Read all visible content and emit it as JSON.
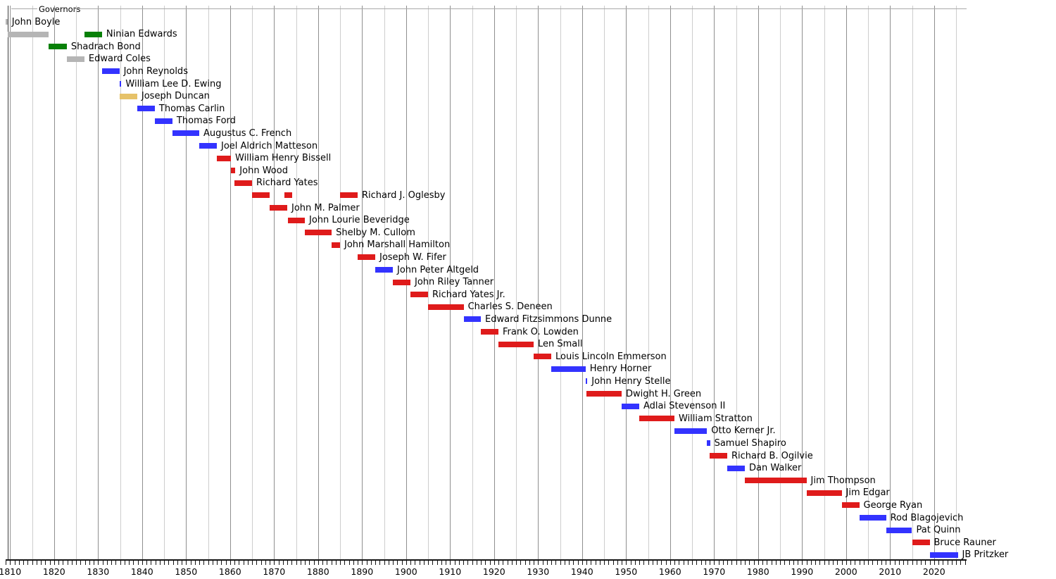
{
  "chart_data": {
    "type": "bar",
    "subtype": "timeline-gantt",
    "legend_title": "Governors",
    "x_axis": {
      "min_year": 1809,
      "max_year": 2027.4,
      "minor_tick_interval_years": 1,
      "gridline_interval_years": 5,
      "decade_labels": [
        "1810",
        "1820",
        "1830",
        "1840",
        "1850",
        "1860",
        "1870",
        "1880",
        "1890",
        "1900",
        "1910",
        "1920",
        "1930",
        "1940",
        "1950",
        "1960",
        "1970",
        "1980",
        "1990",
        "2000",
        "2010",
        "2020"
      ]
    },
    "palette": {
      "gray": "#b5b5b5",
      "green": "#078007",
      "blue": "#3333ff",
      "red": "#df1b1b",
      "yellow": "#e6c269"
    },
    "governors": [
      {
        "name": "John Boyle",
        "terms": [
          {
            "start": 1809.0,
            "end": 1809.45,
            "color": "gray"
          }
        ]
      },
      {
        "name": "Ninian Edwards",
        "terms": [
          {
            "start": 1809.45,
            "end": 1818.8,
            "color": "gray"
          },
          {
            "start": 1826.9,
            "end": 1830.9,
            "color": "green"
          }
        ]
      },
      {
        "name": "Shadrach Bond",
        "terms": [
          {
            "start": 1818.8,
            "end": 1822.9,
            "color": "green"
          }
        ]
      },
      {
        "name": "Edward Coles",
        "terms": [
          {
            "start": 1822.9,
            "end": 1826.9,
            "color": "gray"
          }
        ]
      },
      {
        "name": "John Reynolds",
        "terms": [
          {
            "start": 1830.9,
            "end": 1834.85,
            "color": "blue"
          }
        ]
      },
      {
        "name": "William Lee D. Ewing",
        "terms": [
          {
            "start": 1834.85,
            "end": 1835.3,
            "color": "blue"
          }
        ]
      },
      {
        "name": "Joseph Duncan",
        "terms": [
          {
            "start": 1834.9,
            "end": 1838.9,
            "color": "yellow"
          }
        ]
      },
      {
        "name": "Thomas Carlin",
        "terms": [
          {
            "start": 1838.9,
            "end": 1842.9,
            "color": "blue"
          }
        ]
      },
      {
        "name": "Thomas Ford",
        "terms": [
          {
            "start": 1842.9,
            "end": 1846.9,
            "color": "blue"
          }
        ]
      },
      {
        "name": "Augustus C. French",
        "terms": [
          {
            "start": 1846.9,
            "end": 1853.0,
            "color": "blue"
          }
        ]
      },
      {
        "name": "Joel Aldrich Matteson",
        "terms": [
          {
            "start": 1853.0,
            "end": 1857.0,
            "color": "blue"
          }
        ]
      },
      {
        "name": "William Henry Bissell",
        "terms": [
          {
            "start": 1857.0,
            "end": 1860.2,
            "color": "red"
          }
        ]
      },
      {
        "name": "John Wood",
        "terms": [
          {
            "start": 1860.2,
            "end": 1861.2,
            "color": "red"
          }
        ]
      },
      {
        "name": "Richard Yates",
        "terms": [
          {
            "start": 1861.0,
            "end": 1865.0,
            "color": "red"
          }
        ]
      },
      {
        "name": "Richard J. Oglesby",
        "terms": [
          {
            "start": 1865.0,
            "end": 1869.0,
            "color": "red"
          },
          {
            "start": 1872.4,
            "end": 1874.2,
            "color": "red"
          },
          {
            "start": 1885.0,
            "end": 1889.0,
            "color": "red"
          }
        ]
      },
      {
        "name": "John M. Palmer",
        "terms": [
          {
            "start": 1869.0,
            "end": 1873.0,
            "color": "red"
          }
        ]
      },
      {
        "name": "John Lourie Beveridge",
        "terms": [
          {
            "start": 1873.2,
            "end": 1877.0,
            "color": "red"
          }
        ]
      },
      {
        "name": "Shelby M. Cullom",
        "terms": [
          {
            "start": 1877.0,
            "end": 1883.1,
            "color": "red"
          }
        ]
      },
      {
        "name": "John Marshall Hamilton",
        "terms": [
          {
            "start": 1883.1,
            "end": 1885.0,
            "color": "red"
          }
        ]
      },
      {
        "name": "Joseph W. Fifer",
        "terms": [
          {
            "start": 1889.0,
            "end": 1893.0,
            "color": "red"
          }
        ]
      },
      {
        "name": "John Peter Altgeld",
        "terms": [
          {
            "start": 1893.0,
            "end": 1897.0,
            "color": "blue"
          }
        ]
      },
      {
        "name": "John Riley Tanner",
        "terms": [
          {
            "start": 1897.0,
            "end": 1901.0,
            "color": "red"
          }
        ]
      },
      {
        "name": "Richard Yates Jr.",
        "terms": [
          {
            "start": 1901.0,
            "end": 1905.0,
            "color": "red"
          }
        ]
      },
      {
        "name": "Charles S. Deneen",
        "terms": [
          {
            "start": 1905.0,
            "end": 1913.1,
            "color": "red"
          }
        ]
      },
      {
        "name": "Edward Fitzsimmons Dunne",
        "terms": [
          {
            "start": 1913.1,
            "end": 1917.0,
            "color": "blue"
          }
        ]
      },
      {
        "name": "Frank O. Lowden",
        "terms": [
          {
            "start": 1917.0,
            "end": 1921.0,
            "color": "red"
          }
        ]
      },
      {
        "name": "Len Small",
        "terms": [
          {
            "start": 1921.0,
            "end": 1929.0,
            "color": "red"
          }
        ]
      },
      {
        "name": "Louis Lincoln Emmerson",
        "terms": [
          {
            "start": 1929.0,
            "end": 1933.0,
            "color": "red"
          }
        ]
      },
      {
        "name": "Henry Horner",
        "terms": [
          {
            "start": 1933.0,
            "end": 1940.8,
            "color": "blue"
          }
        ]
      },
      {
        "name": "John Henry Stelle",
        "terms": [
          {
            "start": 1940.8,
            "end": 1941.2,
            "color": "blue"
          }
        ]
      },
      {
        "name": "Dwight H. Green",
        "terms": [
          {
            "start": 1941.0,
            "end": 1949.0,
            "color": "red"
          }
        ]
      },
      {
        "name": "Adlai Stevenson II",
        "terms": [
          {
            "start": 1949.0,
            "end": 1953.0,
            "color": "blue"
          }
        ]
      },
      {
        "name": "William Stratton",
        "terms": [
          {
            "start": 1953.0,
            "end": 1961.0,
            "color": "red"
          }
        ]
      },
      {
        "name": "Otto Kerner Jr.",
        "terms": [
          {
            "start": 1961.0,
            "end": 1968.4,
            "color": "blue"
          }
        ]
      },
      {
        "name": "Samuel Shapiro",
        "terms": [
          {
            "start": 1968.4,
            "end": 1969.1,
            "color": "blue"
          }
        ]
      },
      {
        "name": "Richard B. Ogilvie",
        "terms": [
          {
            "start": 1969.0,
            "end": 1973.0,
            "color": "red"
          }
        ]
      },
      {
        "name": "Dan Walker",
        "terms": [
          {
            "start": 1973.0,
            "end": 1977.0,
            "color": "blue"
          }
        ]
      },
      {
        "name": "Jim Thompson",
        "terms": [
          {
            "start": 1977.0,
            "end": 1991.0,
            "color": "red"
          }
        ]
      },
      {
        "name": "Jim Edgar",
        "terms": [
          {
            "start": 1991.0,
            "end": 1999.0,
            "color": "red"
          }
        ]
      },
      {
        "name": "George Ryan",
        "terms": [
          {
            "start": 1999.0,
            "end": 2003.0,
            "color": "red"
          }
        ]
      },
      {
        "name": "Rod Blagojevich",
        "terms": [
          {
            "start": 2003.0,
            "end": 2009.1,
            "color": "blue"
          }
        ]
      },
      {
        "name": "Pat Quinn",
        "terms": [
          {
            "start": 2009.1,
            "end": 2015.0,
            "color": "blue"
          }
        ]
      },
      {
        "name": "Bruce Rauner",
        "terms": [
          {
            "start": 2015.0,
            "end": 2019.0,
            "color": "red"
          }
        ]
      },
      {
        "name": "JB Pritzker",
        "terms": [
          {
            "start": 2019.0,
            "end": 2025.4,
            "color": "blue"
          }
        ]
      }
    ]
  }
}
